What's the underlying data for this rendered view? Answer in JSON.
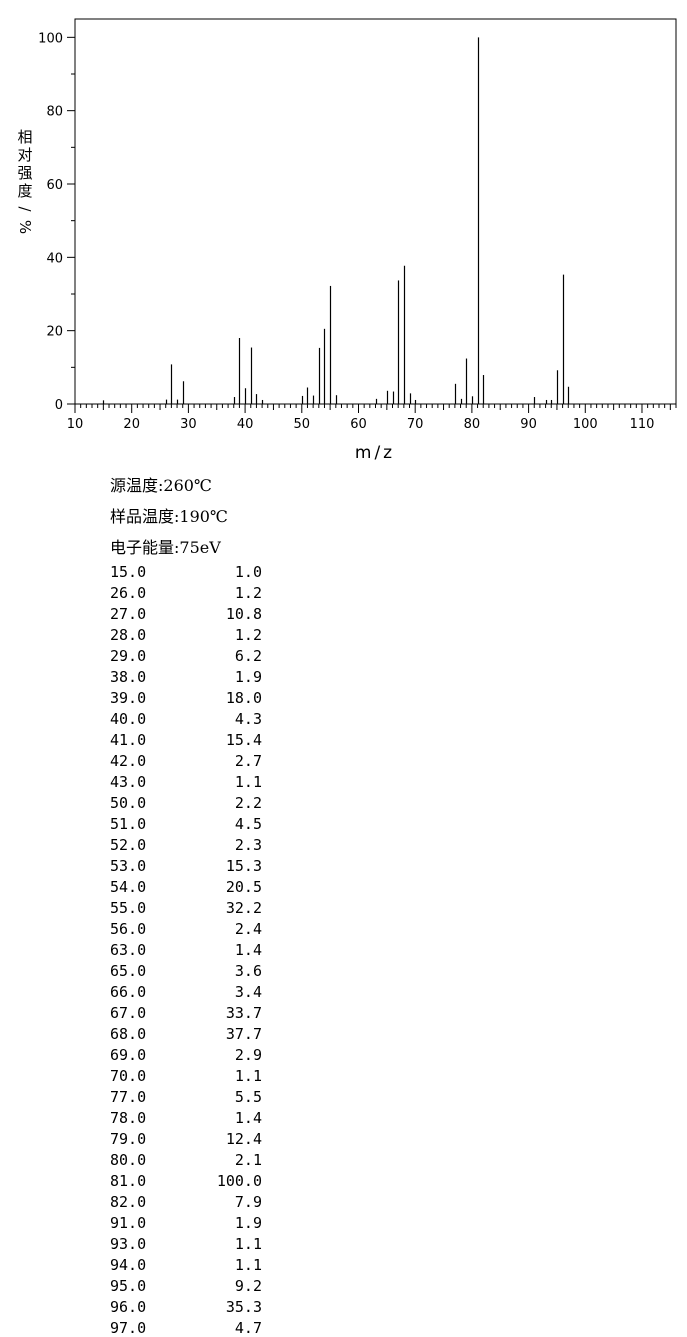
{
  "chart_data": {
    "type": "bar",
    "xlabel": "m/z",
    "ylabel": "相对强度/%",
    "xlim": [
      10,
      116
    ],
    "ylim": [
      0,
      105
    ],
    "x_ticks": [
      10,
      20,
      30,
      40,
      50,
      60,
      70,
      80,
      90,
      100,
      110
    ],
    "y_ticks": [
      0,
      20,
      40,
      60,
      80,
      100
    ],
    "grid": false,
    "series": [
      {
        "x": [
          15,
          26,
          27,
          28,
          29,
          38,
          39,
          40,
          41,
          42,
          43,
          50,
          51,
          52,
          53,
          54,
          55,
          56,
          63,
          65,
          66,
          67,
          68,
          69,
          70,
          77,
          78,
          79,
          80,
          81,
          82,
          91,
          93,
          94,
          95,
          96,
          97
        ],
        "values": [
          1.0,
          1.2,
          10.8,
          1.2,
          6.2,
          1.9,
          18.0,
          4.3,
          15.4,
          2.7,
          1.1,
          2.2,
          4.5,
          2.3,
          15.3,
          20.5,
          32.2,
          2.4,
          1.4,
          3.6,
          3.4,
          33.7,
          37.7,
          2.9,
          1.1,
          5.5,
          1.4,
          12.4,
          2.1,
          100.0,
          7.9,
          1.9,
          1.1,
          1.1,
          9.2,
          35.3,
          4.7
        ]
      }
    ]
  },
  "conditions": {
    "source_temp": "源温度:260℃",
    "sample_temp": "样品温度:190℃",
    "electron_energy": "电子能量:75eV"
  },
  "peaks": [
    {
      "mz": "15.0",
      "intensity": "1.0"
    },
    {
      "mz": "26.0",
      "intensity": "1.2"
    },
    {
      "mz": "27.0",
      "intensity": "10.8"
    },
    {
      "mz": "28.0",
      "intensity": "1.2"
    },
    {
      "mz": "29.0",
      "intensity": "6.2"
    },
    {
      "mz": "38.0",
      "intensity": "1.9"
    },
    {
      "mz": "39.0",
      "intensity": "18.0"
    },
    {
      "mz": "40.0",
      "intensity": "4.3"
    },
    {
      "mz": "41.0",
      "intensity": "15.4"
    },
    {
      "mz": "42.0",
      "intensity": "2.7"
    },
    {
      "mz": "43.0",
      "intensity": "1.1"
    },
    {
      "mz": "50.0",
      "intensity": "2.2"
    },
    {
      "mz": "51.0",
      "intensity": "4.5"
    },
    {
      "mz": "52.0",
      "intensity": "2.3"
    },
    {
      "mz": "53.0",
      "intensity": "15.3"
    },
    {
      "mz": "54.0",
      "intensity": "20.5"
    },
    {
      "mz": "55.0",
      "intensity": "32.2"
    },
    {
      "mz": "56.0",
      "intensity": "2.4"
    },
    {
      "mz": "63.0",
      "intensity": "1.4"
    },
    {
      "mz": "65.0",
      "intensity": "3.6"
    },
    {
      "mz": "66.0",
      "intensity": "3.4"
    },
    {
      "mz": "67.0",
      "intensity": "33.7"
    },
    {
      "mz": "68.0",
      "intensity": "37.7"
    },
    {
      "mz": "69.0",
      "intensity": "2.9"
    },
    {
      "mz": "70.0",
      "intensity": "1.1"
    },
    {
      "mz": "77.0",
      "intensity": "5.5"
    },
    {
      "mz": "78.0",
      "intensity": "1.4"
    },
    {
      "mz": "79.0",
      "intensity": "12.4"
    },
    {
      "mz": "80.0",
      "intensity": "2.1"
    },
    {
      "mz": "81.0",
      "intensity": "100.0"
    },
    {
      "mz": "82.0",
      "intensity": "7.9"
    },
    {
      "mz": "91.0",
      "intensity": "1.9"
    },
    {
      "mz": "93.0",
      "intensity": "1.1"
    },
    {
      "mz": "94.0",
      "intensity": "1.1"
    },
    {
      "mz": "95.0",
      "intensity": "9.2"
    },
    {
      "mz": "96.0",
      "intensity": "35.3"
    },
    {
      "mz": "97.0",
      "intensity": "4.7"
    }
  ]
}
